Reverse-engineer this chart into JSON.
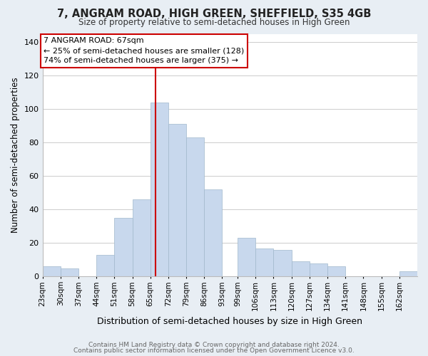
{
  "title": "7, ANGRAM ROAD, HIGH GREEN, SHEFFIELD, S35 4GB",
  "subtitle": "Size of property relative to semi-detached houses in High Green",
  "xlabel": "Distribution of semi-detached houses by size in High Green",
  "ylabel": "Number of semi-detached properties",
  "bar_color": "#c8d8ed",
  "bin_labels": [
    "23sqm",
    "30sqm",
    "37sqm",
    "44sqm",
    "51sqm",
    "58sqm",
    "65sqm",
    "72sqm",
    "79sqm",
    "86sqm",
    "93sqm",
    "99sqm",
    "106sqm",
    "113sqm",
    "120sqm",
    "127sqm",
    "134sqm",
    "141sqm",
    "148sqm",
    "155sqm",
    "162sqm"
  ],
  "bar_heights": [
    6,
    5,
    0,
    13,
    35,
    46,
    104,
    91,
    83,
    52,
    0,
    23,
    17,
    16,
    9,
    8,
    6,
    0,
    0,
    0,
    3
  ],
  "ylim": [
    0,
    145
  ],
  "yticks": [
    0,
    20,
    40,
    60,
    80,
    100,
    120,
    140
  ],
  "annotation_title": "7 ANGRAM ROAD: 67sqm",
  "annotation_line1": "← 25% of semi-detached houses are smaller (128)",
  "annotation_line2": "74% of semi-detached houses are larger (375) →",
  "annotation_border_color": "#cc0000",
  "vline_color": "#cc0000",
  "footer1": "Contains HM Land Registry data © Crown copyright and database right 2024.",
  "footer2": "Contains public sector information licensed under the Open Government Licence v3.0.",
  "background_color": "#e8eef4",
  "plot_bg_color": "#ffffff",
  "bin_edges": [
    23,
    30,
    37,
    44,
    51,
    58,
    65,
    72,
    79,
    86,
    93,
    99,
    106,
    113,
    120,
    127,
    134,
    141,
    148,
    155,
    162,
    169
  ]
}
